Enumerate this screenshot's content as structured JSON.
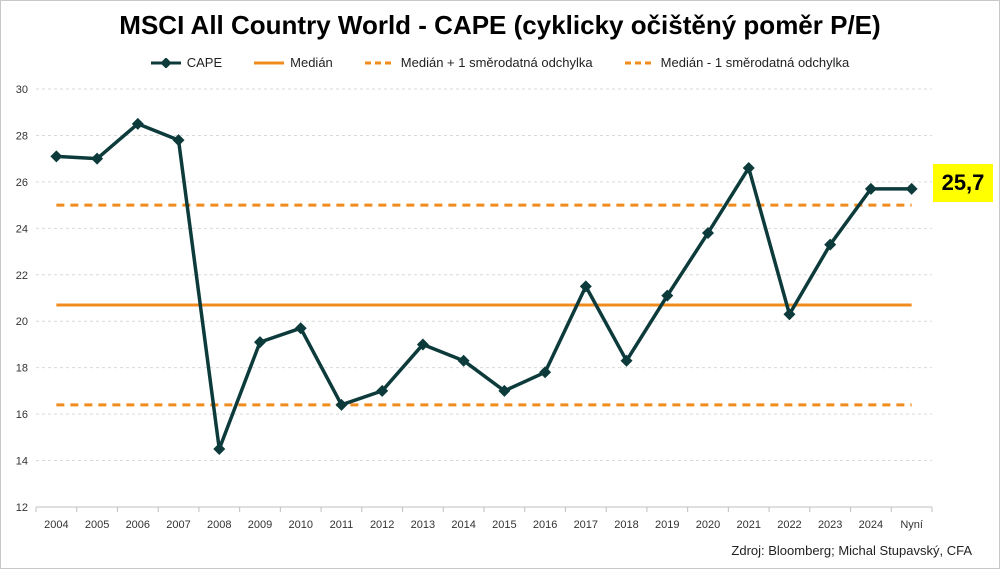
{
  "title": "MSCI All Country World - CAPE (cyklicky očištěný poměr P/E)",
  "legend": {
    "cape": "CAPE",
    "median": "Medián",
    "plus_sd": "Medián + 1 směrodatná odchylka",
    "minus_sd": "Medián - 1 směrodatná odchylka"
  },
  "current_value_label": "25,7",
  "source": "Zdroj: Bloomberg; Michal Stupavský, CFA",
  "colors": {
    "cape": "#0d3b3b",
    "median": "#f08c1e",
    "sd": "#f08c1e",
    "grid": "#d9d9d9",
    "badge": "#ffff00"
  },
  "chart_data": {
    "type": "line",
    "title": "MSCI All Country World - CAPE (cyklicky očištěný poměr P/E)",
    "xlabel": "",
    "ylabel": "",
    "ylim": [
      12,
      30
    ],
    "yticks": [
      12,
      14,
      16,
      18,
      20,
      22,
      24,
      26,
      28,
      30
    ],
    "grid": true,
    "legend_position": "top",
    "categories": [
      "2004",
      "2005",
      "2006",
      "2007",
      "2008",
      "2009",
      "2010",
      "2011",
      "2012",
      "2013",
      "2014",
      "2015",
      "2016",
      "2017",
      "2018",
      "2019",
      "2020",
      "2021",
      "2022",
      "2023",
      "2024",
      "Nyní"
    ],
    "series": [
      {
        "name": "CAPE",
        "values": [
          27.1,
          27.0,
          28.5,
          27.8,
          14.5,
          19.1,
          19.7,
          16.4,
          17.0,
          19.0,
          18.3,
          17.0,
          17.8,
          21.5,
          18.3,
          21.1,
          23.8,
          26.6,
          20.3,
          23.3,
          25.7,
          25.7
        ]
      },
      {
        "name": "Medián",
        "constant": 20.7
      },
      {
        "name": "Medián + 1 směrodatná odchylka",
        "constant": 25.0
      },
      {
        "name": "Medián - 1 směrodatná odchylka",
        "constant": 16.4
      }
    ]
  }
}
